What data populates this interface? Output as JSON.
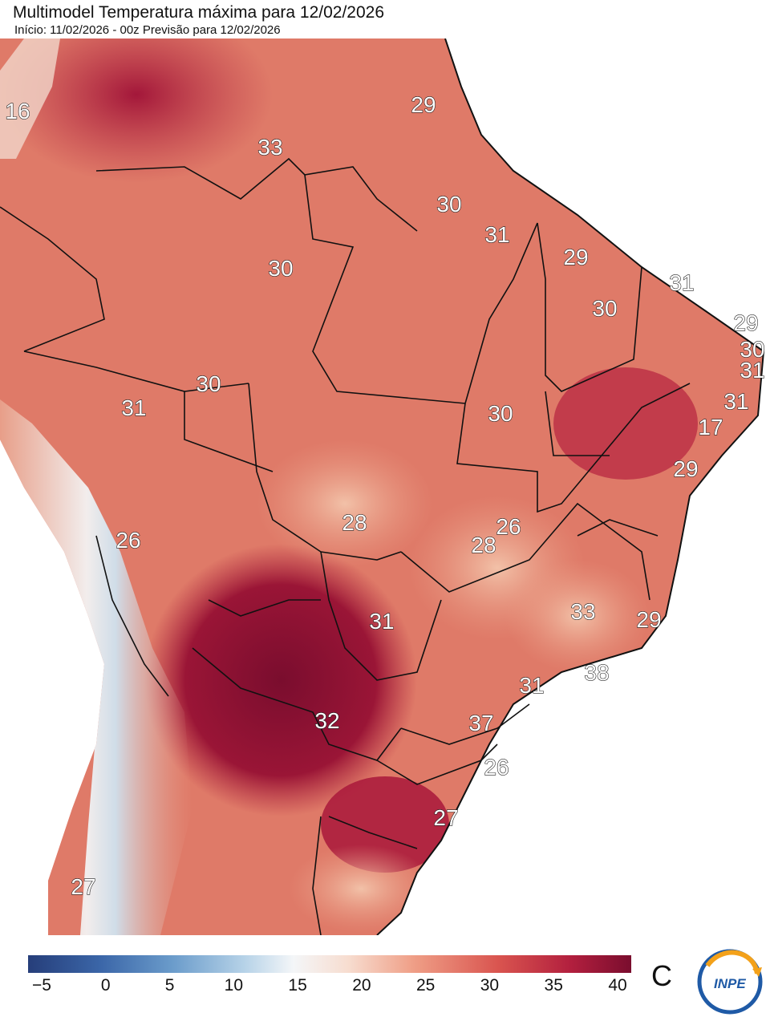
{
  "header": {
    "title": "Multimodel Temperatura máxima para 12/02/2026",
    "subtitle": "Início: 11/02/2026 - 00z  Previsão para 12/02/2026"
  },
  "map": {
    "variable": "temperatura máxima",
    "labels": [
      "16",
      "33",
      "29",
      "30",
      "31",
      "29",
      "30",
      "31",
      "29",
      "30",
      "30",
      "31",
      "30",
      "31",
      "31",
      "30",
      "17",
      "29",
      "26",
      "28",
      "26",
      "28",
      "31",
      "33",
      "29",
      "38",
      "31",
      "32",
      "37",
      "26",
      "27",
      "27"
    ]
  },
  "colorbar": {
    "ticks": [
      "−5",
      "0",
      "5",
      "10",
      "15",
      "20",
      "25",
      "30",
      "35",
      "40"
    ],
    "unit": "C"
  },
  "logo": {
    "text": "INPE"
  },
  "colors": {
    "cold": "#263e7a",
    "neutral": "#f4f6f8",
    "warm": "#d9544f",
    "hot": "#7a0d2e"
  }
}
